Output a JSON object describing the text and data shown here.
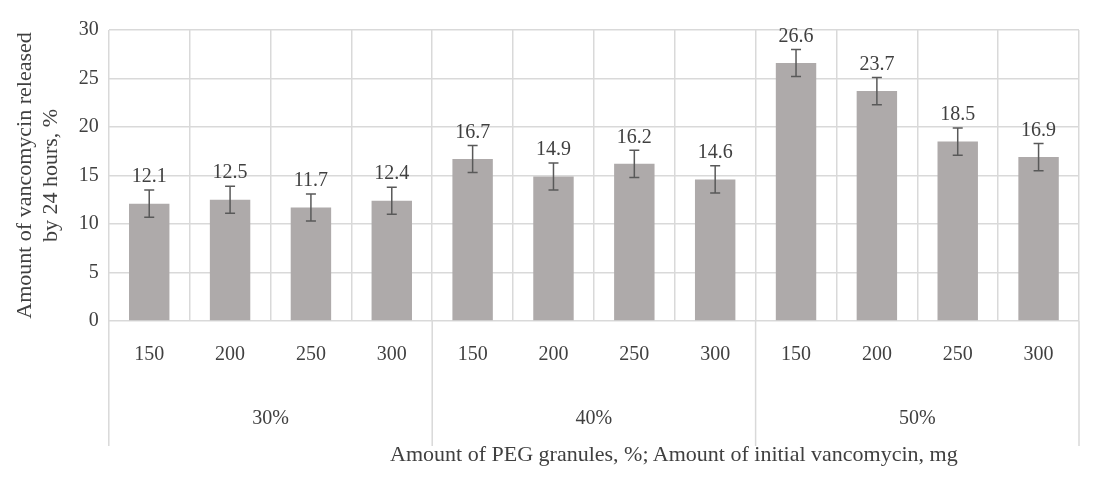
{
  "chart_data": {
    "type": "bar",
    "xlabel": "Amount of PEG granules, %; Amount of initial vancomycin, mg",
    "ylabel": "Amount of vancomycin released by 24 hours, %",
    "categories": [
      "150",
      "200",
      "250",
      "300",
      "150",
      "200",
      "250",
      "300",
      "150",
      "200",
      "250",
      "300"
    ],
    "values": [
      12.1,
      12.5,
      11.7,
      12.4,
      16.7,
      14.9,
      16.2,
      14.6,
      26.6,
      23.7,
      18.5,
      16.9
    ],
    "errors": [
      1.4,
      1.4,
      1.4,
      1.4,
      1.4,
      1.4,
      1.4,
      1.4,
      1.4,
      1.4,
      1.4,
      1.4
    ],
    "color": "#aeaaaa",
    "ylim": [
      0,
      30
    ],
    "yticks": [
      0,
      5,
      10,
      15,
      20,
      25,
      30
    ],
    "grid": true,
    "data_labels": true,
    "annotations": [
      "30%",
      "40%",
      "50%"
    ]
  }
}
